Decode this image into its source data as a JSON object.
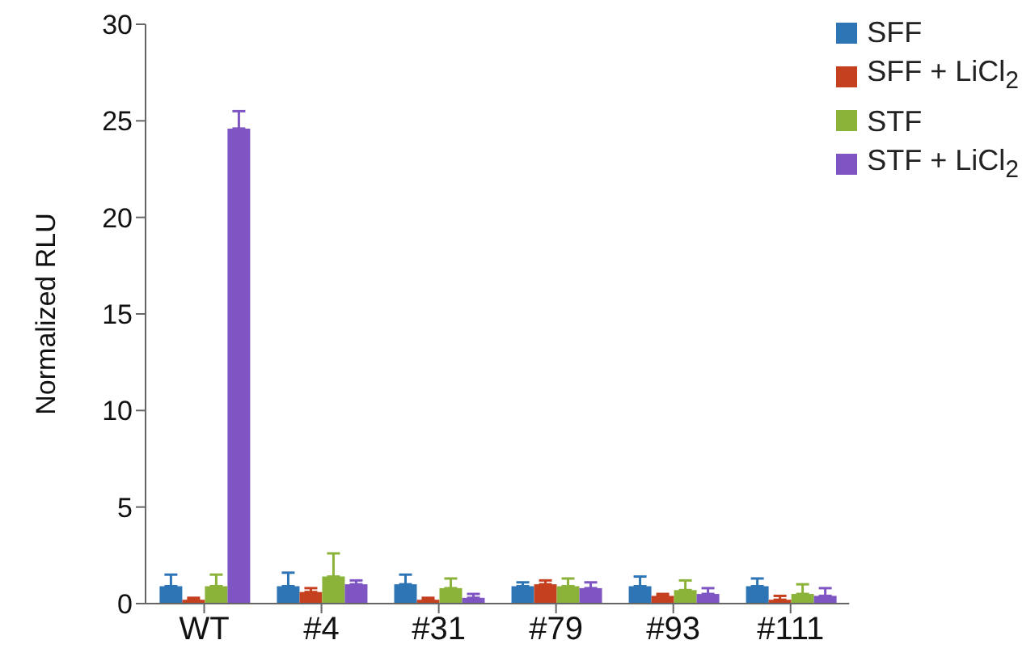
{
  "chart_data": {
    "type": "bar",
    "ylabel": "Normalized RLU",
    "categories": [
      "WT",
      "#4",
      "#31",
      "#79",
      "#93",
      "#111"
    ],
    "series": [
      {
        "name": "SFF",
        "color": "#2e75b6",
        "values": [
          0.9,
          0.9,
          1.0,
          0.9,
          0.9,
          0.9
        ],
        "errors": [
          [
            0.9,
            1.5
          ],
          [
            0.9,
            1.6
          ],
          [
            1.0,
            1.5
          ],
          [
            0.9,
            1.1
          ],
          [
            0.9,
            1.4
          ],
          [
            0.9,
            1.3
          ]
        ]
      },
      {
        "name": "SFF + LiCl$_{2}$",
        "color": "#c5401f",
        "values": [
          0.2,
          0.6,
          0.2,
          1.0,
          0.4,
          0.2
        ],
        "errors": [
          [
            0.2,
            0.3
          ],
          [
            0.6,
            0.8
          ],
          [
            0.2,
            0.3
          ],
          [
            1.0,
            1.2
          ],
          [
            0.4,
            0.5
          ],
          [
            0.2,
            0.4
          ]
        ]
      },
      {
        "name": "STF",
        "color": "#8bb33a",
        "values": [
          0.9,
          1.4,
          0.8,
          0.9,
          0.7,
          0.5
        ],
        "errors": [
          [
            0.9,
            1.5
          ],
          [
            1.4,
            2.6
          ],
          [
            0.8,
            1.3
          ],
          [
            0.9,
            1.3
          ],
          [
            0.7,
            1.2
          ],
          [
            0.5,
            1.0
          ]
        ]
      },
      {
        "name": "STF + LiCl$_{2}$",
        "color": "#7e55c2",
        "values": [
          24.6,
          1.0,
          0.3,
          0.8,
          0.5,
          0.4
        ],
        "errors": [
          [
            24.6,
            25.5
          ],
          [
            1.0,
            1.2
          ],
          [
            0.3,
            0.5
          ],
          [
            0.8,
            1.1
          ],
          [
            0.5,
            0.8
          ],
          [
            0.4,
            0.8
          ]
        ]
      }
    ],
    "ylim": [
      0,
      30
    ],
    "yticks": [
      0,
      5,
      10,
      15,
      20,
      25,
      30
    ],
    "grid": false,
    "legend": "top right"
  }
}
